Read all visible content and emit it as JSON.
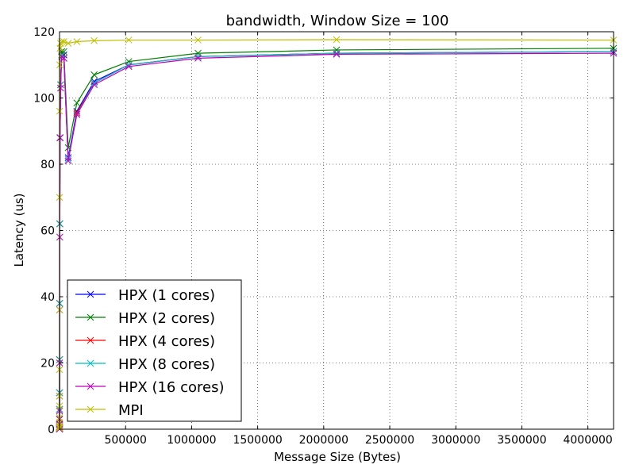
{
  "chart_data": {
    "type": "line",
    "title": "bandwidth, Window Size = 100",
    "xlabel": "Message Size (Bytes)",
    "ylabel": "Latency (us)",
    "xlim": [
      0,
      4194304
    ],
    "ylim": [
      0,
      120
    ],
    "xticks": [
      500000,
      1000000,
      1500000,
      2000000,
      2500000,
      3000000,
      3500000,
      4000000
    ],
    "xtick_labels": [
      "500000",
      "1000000",
      "1500000",
      "2000000",
      "2500000",
      "3000000",
      "3500000",
      "4000000"
    ],
    "yticks": [
      0,
      20,
      40,
      60,
      80,
      100,
      120
    ],
    "ytick_labels": [
      "0",
      "20",
      "40",
      "60",
      "80",
      "100",
      "120"
    ],
    "grid": true,
    "legend_position": "lower-left",
    "x": [
      1,
      2,
      4,
      8,
      16,
      32,
      64,
      128,
      256,
      512,
      1024,
      2048,
      4096,
      8192,
      16384,
      32768,
      65536,
      131072,
      262144,
      524288,
      1048576,
      2097152,
      4194304
    ],
    "series": [
      {
        "name": "HPX (1 cores)",
        "color": "#0000ff",
        "values": [
          0.05,
          0.1,
          0.2,
          0.4,
          0.8,
          1.5,
          3,
          6,
          11,
          21,
          38,
          62,
          88,
          104,
          114,
          113,
          82,
          96,
          105,
          110,
          112.5,
          113.5,
          114
        ]
      },
      {
        "name": "HPX (2 cores)",
        "color": "#008000",
        "values": [
          0.05,
          0.1,
          0.2,
          0.4,
          0.8,
          1.5,
          3,
          6,
          11,
          21,
          38,
          62,
          88,
          104,
          114,
          114,
          85,
          98.5,
          107,
          111,
          113.5,
          114.5,
          115
        ]
      },
      {
        "name": "HPX (4 cores)",
        "color": "#ff0000",
        "values": [
          0.05,
          0.1,
          0.2,
          0.4,
          0.8,
          1.5,
          3,
          6,
          11,
          21,
          38,
          62,
          88,
          104,
          113,
          112,
          81,
          95.5,
          104.5,
          110,
          112.5,
          113.5,
          114
        ]
      },
      {
        "name": "HPX (8 cores)",
        "color": "#00bfbf",
        "values": [
          0.05,
          0.1,
          0.2,
          0.4,
          0.8,
          1.5,
          3,
          6,
          11,
          21,
          38,
          62,
          88,
          104,
          113,
          112,
          81.5,
          95,
          104.5,
          110,
          112.5,
          113.5,
          114
        ]
      },
      {
        "name": "HPX (16 cores)",
        "color": "#bf00bf",
        "values": [
          0.05,
          0.1,
          0.2,
          0.4,
          0.8,
          1.5,
          3,
          5.5,
          10,
          20,
          36,
          58,
          88,
          103,
          112.5,
          112,
          81,
          95,
          104,
          109.5,
          112,
          113.2,
          113.5
        ]
      },
      {
        "name": "MPI",
        "color": "#bfbf00",
        "values": [
          0.3,
          0.6,
          1,
          2,
          3.5,
          7,
          10,
          18,
          36,
          70,
          96,
          110,
          115,
          116.5,
          117,
          117,
          116.5,
          117,
          117.3,
          117.5,
          117.5,
          117.6,
          117.5
        ]
      }
    ]
  }
}
